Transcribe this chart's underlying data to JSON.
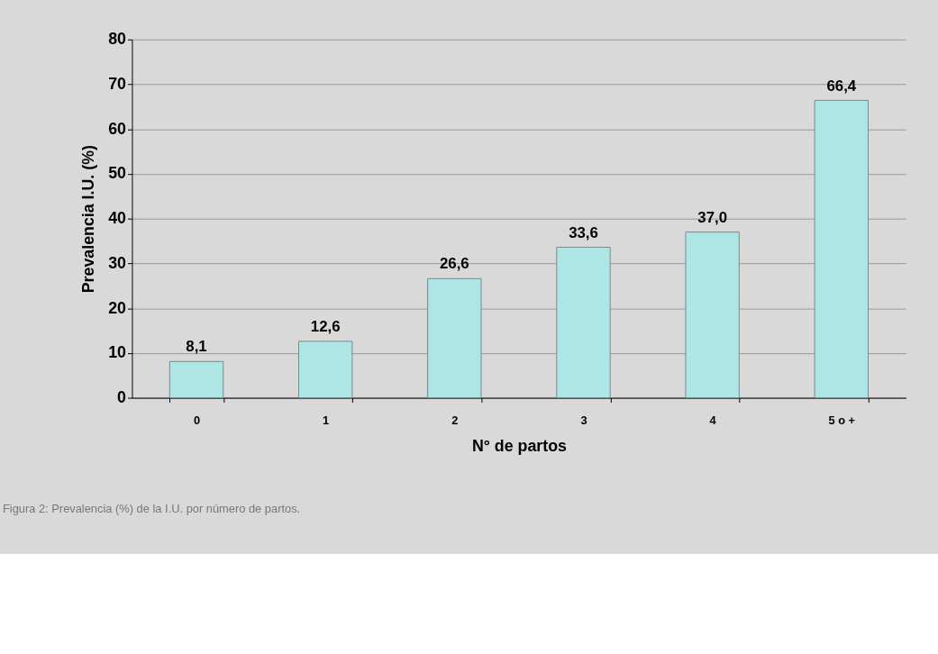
{
  "chart_data": {
    "type": "bar",
    "xlabel": "N° de partos",
    "ylabel": "Prevalencia I.U. (%)",
    "categories": [
      "0",
      "1",
      "2",
      "3",
      "4",
      "5 o +"
    ],
    "values": [
      8.1,
      12.6,
      26.6,
      33.6,
      37.0,
      66.4
    ],
    "value_labels": [
      "8,1",
      "12,6",
      "26,6",
      "33,6",
      "37,0",
      "66,4"
    ],
    "color": "#aee6e6",
    "ylim": [
      0,
      80
    ],
    "yticks": [
      0,
      10,
      20,
      30,
      40,
      50,
      60,
      70,
      80
    ],
    "grid": "y",
    "annotations": [
      "Figura 2: Prevalencia (%) de la I.U. por número de partos."
    ]
  }
}
